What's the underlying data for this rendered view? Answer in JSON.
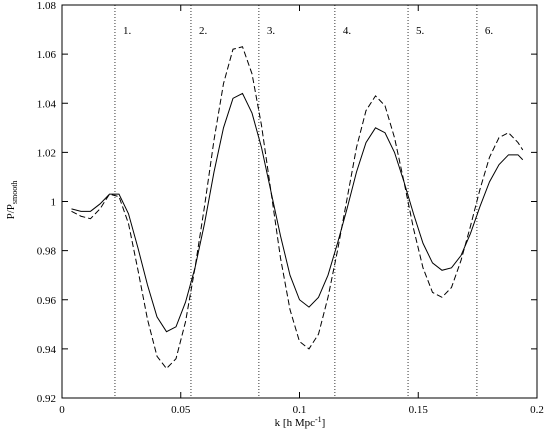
{
  "chart_data": {
    "type": "line",
    "xlabel": "k [h Mpc",
    "xlabel_superscript": "-1",
    "xlabel_end": "]",
    "ylabel": "P/P",
    "ylabel_subscript": "smooth",
    "x": [
      0.004,
      0.008,
      0.012,
      0.016,
      0.02,
      0.024,
      0.028,
      0.032,
      0.036,
      0.04,
      0.044,
      0.048,
      0.052,
      0.056,
      0.06,
      0.064,
      0.068,
      0.072,
      0.076,
      0.08,
      0.084,
      0.088,
      0.092,
      0.096,
      0.1,
      0.104,
      0.108,
      0.112,
      0.116,
      0.12,
      0.124,
      0.128,
      0.132,
      0.136,
      0.14,
      0.144,
      0.148,
      0.152,
      0.156,
      0.16,
      0.164,
      0.168,
      0.172,
      0.176,
      0.18,
      0.184,
      0.188,
      0.192,
      0.194
    ],
    "series": [
      {
        "color": "#000000",
        "dash": "solid",
        "values": [
          0.997,
          0.996,
          0.996,
          0.999,
          1.003,
          1.003,
          0.995,
          0.981,
          0.966,
          0.953,
          0.947,
          0.949,
          0.959,
          0.973,
          0.991,
          1.012,
          1.03,
          1.042,
          1.044,
          1.036,
          1.022,
          1.004,
          0.986,
          0.97,
          0.96,
          0.957,
          0.961,
          0.97,
          0.983,
          0.997,
          1.012,
          1.024,
          1.03,
          1.028,
          1.02,
          1.008,
          0.995,
          0.983,
          0.975,
          0.972,
          0.973,
          0.978,
          0.987,
          0.998,
          1.008,
          1.015,
          1.019,
          1.019,
          1.017
        ]
      },
      {
        "color": "#000000",
        "dash": "dashed",
        "values": [
          0.996,
          0.994,
          0.993,
          0.997,
          1.003,
          1.002,
          0.991,
          0.972,
          0.952,
          0.937,
          0.932,
          0.936,
          0.951,
          0.973,
          0.998,
          1.025,
          1.048,
          1.062,
          1.063,
          1.052,
          1.031,
          1.004,
          0.977,
          0.956,
          0.943,
          0.94,
          0.946,
          0.961,
          0.98,
          1.001,
          1.022,
          1.037,
          1.043,
          1.039,
          1.026,
          1.008,
          0.989,
          0.973,
          0.963,
          0.961,
          0.965,
          0.976,
          0.99,
          1.005,
          1.018,
          1.026,
          1.028,
          1.024,
          1.021
        ]
      }
    ],
    "vlines": [
      {
        "x": 0.0223,
        "label": "1."
      },
      {
        "x": 0.0543,
        "label": "2."
      },
      {
        "x": 0.0829,
        "label": "3."
      },
      {
        "x": 0.1149,
        "label": "4."
      },
      {
        "x": 0.1457,
        "label": "5."
      },
      {
        "x": 0.1747,
        "label": "6."
      }
    ],
    "xlim": [
      0,
      0.2
    ],
    "xticks": [
      0,
      0.05,
      0.1,
      0.15,
      0.2
    ],
    "ylim": [
      0.92,
      1.08
    ],
    "yticks": [
      0.92,
      0.94,
      0.96,
      0.98,
      1,
      1.02,
      1.04,
      1.06,
      1.08
    ]
  }
}
